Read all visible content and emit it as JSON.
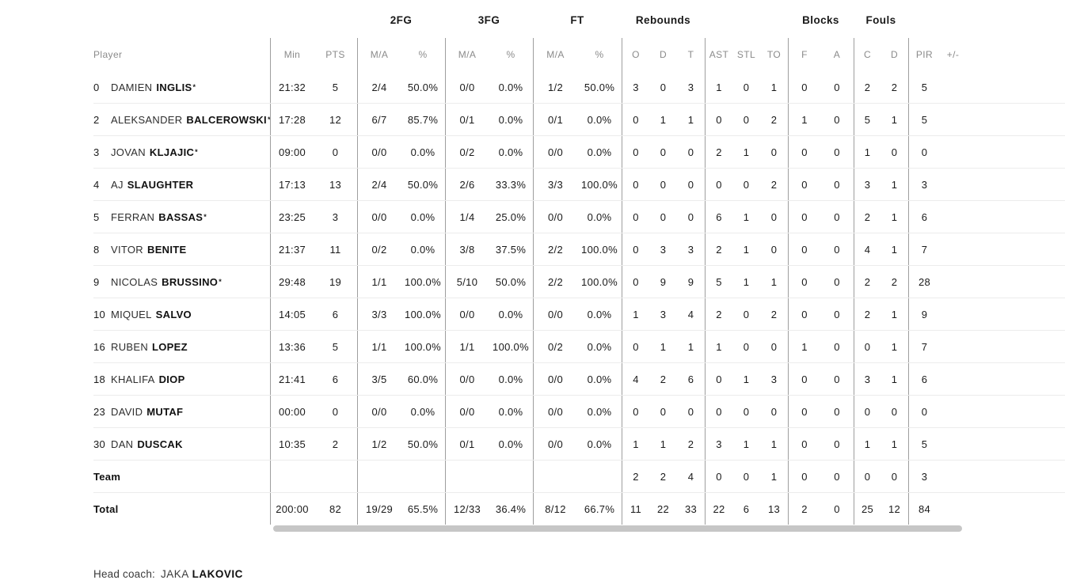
{
  "colors": {
    "text_dark": "#1a1a1a",
    "text_gray": "#8b8b8b",
    "row_line": "#ececec",
    "group_line": "#9e9e9e",
    "scrollbar": "#c6c6c6"
  },
  "table": {
    "group_headers": {
      "fg2": "2FG",
      "fg3": "3FG",
      "ft": "FT",
      "rebounds": "Rebounds",
      "blocks": "Blocks",
      "fouls": "Fouls"
    },
    "sub_headers": {
      "player": "Player",
      "min": "Min",
      "pts": "PTS",
      "ma": "M/A",
      "pct": "%",
      "o": "O",
      "d": "D",
      "t": "T",
      "ast": "AST",
      "stl": "STL",
      "to": "TO",
      "f": "F",
      "a": "A",
      "c": "C",
      "pir": "PIR",
      "plusminus": "+/-"
    },
    "rows": [
      {
        "num": "0",
        "first": "DAMIEN",
        "last": "INGLIS",
        "star": "*",
        "cells": [
          "21:32",
          "5",
          "2/4",
          "50.0%",
          "0/0",
          "0.0%",
          "1/2",
          "50.0%",
          "3",
          "0",
          "3",
          "1",
          "0",
          "1",
          "0",
          "0",
          "2",
          "2",
          "5",
          ""
        ]
      },
      {
        "num": "2",
        "first": "ALEKSANDER",
        "last": "BALCEROWSKI",
        "star": "*",
        "cells": [
          "17:28",
          "12",
          "6/7",
          "85.7%",
          "0/1",
          "0.0%",
          "0/1",
          "0.0%",
          "0",
          "1",
          "1",
          "0",
          "0",
          "2",
          "1",
          "0",
          "5",
          "1",
          "5",
          ""
        ]
      },
      {
        "num": "3",
        "first": "JOVAN",
        "last": "KLJAJIC",
        "star": "*",
        "cells": [
          "09:00",
          "0",
          "0/0",
          "0.0%",
          "0/2",
          "0.0%",
          "0/0",
          "0.0%",
          "0",
          "0",
          "0",
          "2",
          "1",
          "0",
          "0",
          "0",
          "1",
          "0",
          "0",
          ""
        ]
      },
      {
        "num": "4",
        "first": "AJ",
        "last": "SLAUGHTER",
        "star": "",
        "cells": [
          "17:13",
          "13",
          "2/4",
          "50.0%",
          "2/6",
          "33.3%",
          "3/3",
          "100.0%",
          "0",
          "0",
          "0",
          "0",
          "0",
          "2",
          "0",
          "0",
          "3",
          "1",
          "3",
          ""
        ]
      },
      {
        "num": "5",
        "first": "FERRAN",
        "last": "BASSAS",
        "star": "*",
        "cells": [
          "23:25",
          "3",
          "0/0",
          "0.0%",
          "1/4",
          "25.0%",
          "0/0",
          "0.0%",
          "0",
          "0",
          "0",
          "6",
          "1",
          "0",
          "0",
          "0",
          "2",
          "1",
          "6",
          ""
        ]
      },
      {
        "num": "8",
        "first": "VITOR",
        "last": "BENITE",
        "star": "",
        "cells": [
          "21:37",
          "11",
          "0/2",
          "0.0%",
          "3/8",
          "37.5%",
          "2/2",
          "100.0%",
          "0",
          "3",
          "3",
          "2",
          "1",
          "0",
          "0",
          "0",
          "4",
          "1",
          "7",
          ""
        ]
      },
      {
        "num": "9",
        "first": "NICOLAS",
        "last": "BRUSSINO",
        "star": "*",
        "cells": [
          "29:48",
          "19",
          "1/1",
          "100.0%",
          "5/10",
          "50.0%",
          "2/2",
          "100.0%",
          "0",
          "9",
          "9",
          "5",
          "1",
          "1",
          "0",
          "0",
          "2",
          "2",
          "28",
          ""
        ]
      },
      {
        "num": "10",
        "first": "MIQUEL",
        "last": "SALVO",
        "star": "",
        "cells": [
          "14:05",
          "6",
          "3/3",
          "100.0%",
          "0/0",
          "0.0%",
          "0/0",
          "0.0%",
          "1",
          "3",
          "4",
          "2",
          "0",
          "2",
          "0",
          "0",
          "2",
          "1",
          "9",
          ""
        ]
      },
      {
        "num": "16",
        "first": "RUBEN",
        "last": "LOPEZ",
        "star": "",
        "cells": [
          "13:36",
          "5",
          "1/1",
          "100.0%",
          "1/1",
          "100.0%",
          "0/2",
          "0.0%",
          "0",
          "1",
          "1",
          "1",
          "0",
          "0",
          "1",
          "0",
          "0",
          "1",
          "7",
          ""
        ]
      },
      {
        "num": "18",
        "first": "KHALIFA",
        "last": "DIOP",
        "star": "",
        "cells": [
          "21:41",
          "6",
          "3/5",
          "60.0%",
          "0/0",
          "0.0%",
          "0/0",
          "0.0%",
          "4",
          "2",
          "6",
          "0",
          "1",
          "3",
          "0",
          "0",
          "3",
          "1",
          "6",
          ""
        ]
      },
      {
        "num": "23",
        "first": "DAVID",
        "last": "MUTAF",
        "star": "",
        "cells": [
          "00:00",
          "0",
          "0/0",
          "0.0%",
          "0/0",
          "0.0%",
          "0/0",
          "0.0%",
          "0",
          "0",
          "0",
          "0",
          "0",
          "0",
          "0",
          "0",
          "0",
          "0",
          "0",
          ""
        ]
      },
      {
        "num": "30",
        "first": "DAN",
        "last": "DUSCAK",
        "star": "",
        "cells": [
          "10:35",
          "2",
          "1/2",
          "50.0%",
          "0/1",
          "0.0%",
          "0/0",
          "0.0%",
          "1",
          "1",
          "2",
          "3",
          "1",
          "1",
          "0",
          "0",
          "1",
          "1",
          "5",
          ""
        ]
      }
    ],
    "team_row": {
      "label": "Team",
      "cells": [
        "",
        "",
        "",
        "",
        "",
        "",
        "",
        "",
        "2",
        "2",
        "4",
        "0",
        "0",
        "1",
        "0",
        "0",
        "0",
        "0",
        "3",
        ""
      ]
    },
    "total_row": {
      "label": "Total",
      "cells": [
        "200:00",
        "82",
        "19/29",
        "65.5%",
        "12/33",
        "36.4%",
        "8/12",
        "66.7%",
        "11",
        "22",
        "33",
        "22",
        "6",
        "13",
        "2",
        "0",
        "25",
        "12",
        "84",
        ""
      ]
    }
  },
  "footer": {
    "label": "Head coach:",
    "coach_first": "JAKA",
    "coach_last": "LAKOVIC"
  }
}
